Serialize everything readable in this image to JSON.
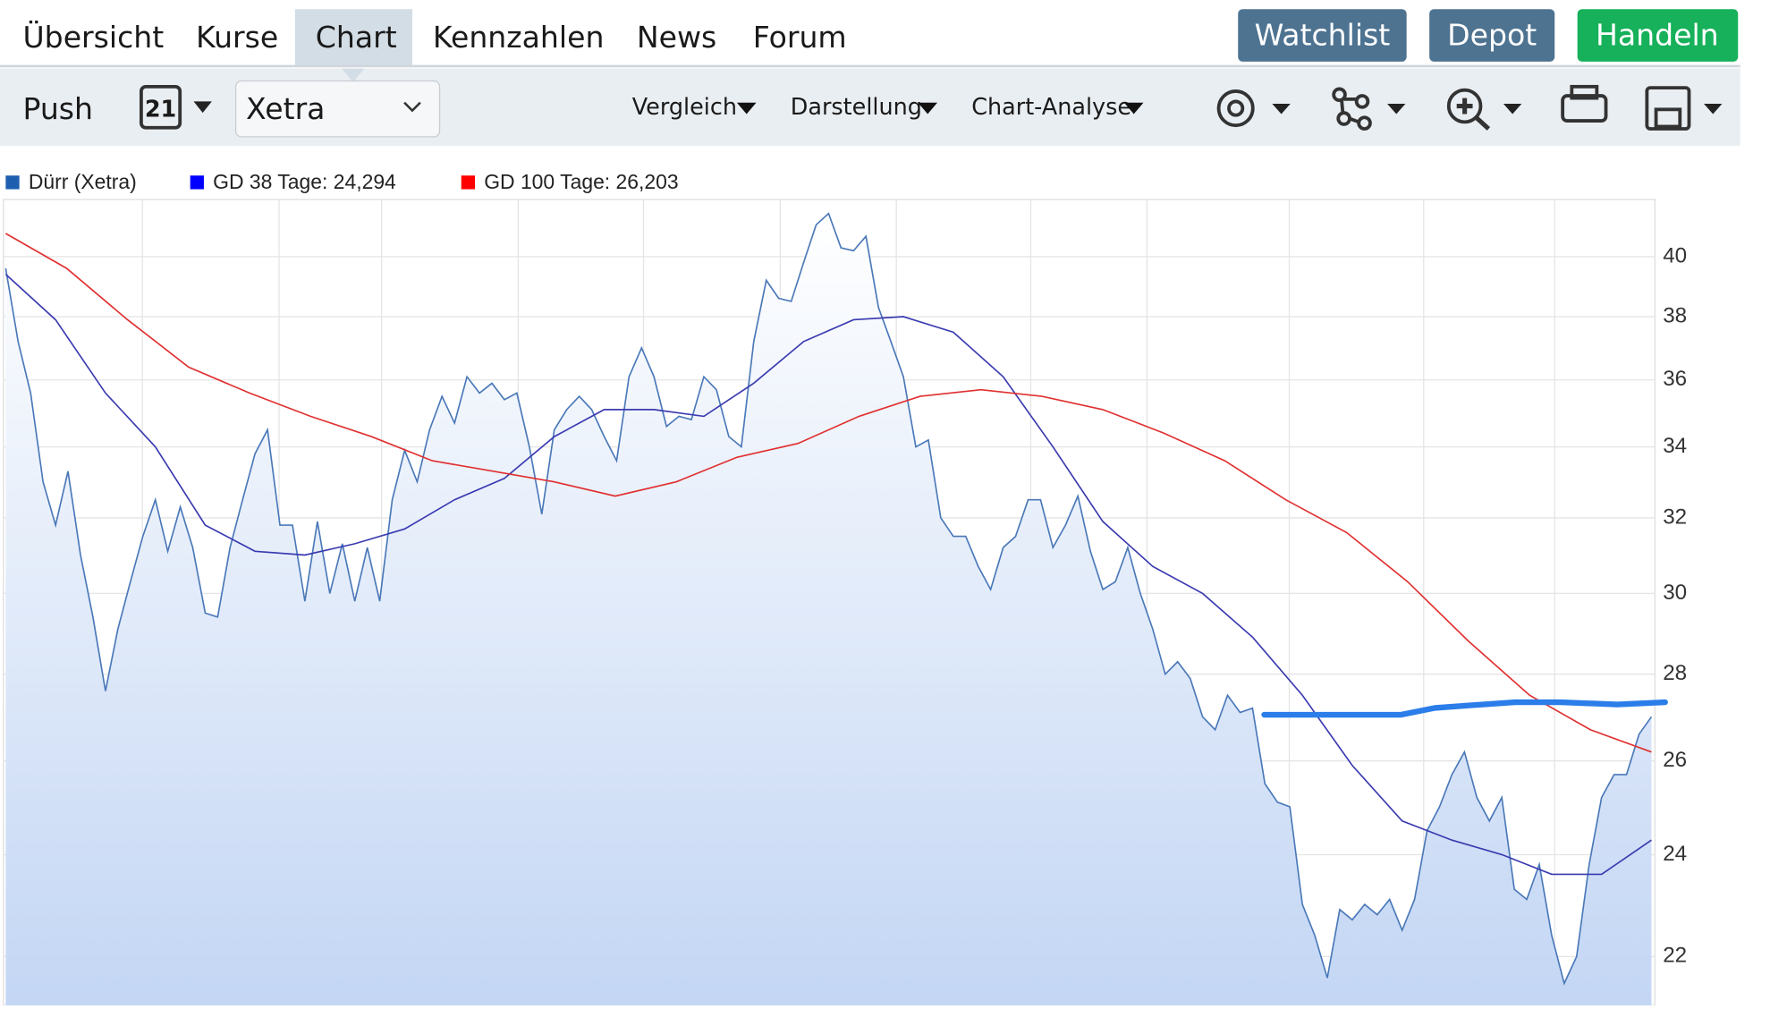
{
  "nav": {
    "tabs": [
      "Übersicht",
      "Kurse",
      "Chart",
      "Kennzahlen",
      "News",
      "Forum"
    ],
    "buttons": [
      "Watchlist",
      "Depot",
      "Handeln"
    ]
  },
  "toolbar": {
    "push": "Push",
    "calendar": "21",
    "exchange": "Xetra",
    "menus": [
      "Vergleich",
      "Darstellung",
      "Chart-Analyse"
    ]
  },
  "chart_data": {
    "type": "line",
    "log_scale": true,
    "grid": true,
    "ylim": [
      21.1,
      42
    ],
    "yticks": [
      22,
      24,
      26,
      28,
      30,
      32,
      34,
      36,
      38,
      40
    ],
    "series": [
      {
        "name": "Dürr (Xetra)",
        "color": "#4a78b8",
        "legend_color": "#1f5fb0",
        "area": true,
        "values": [
          39.6,
          37.2,
          35.6,
          33.0,
          31.8,
          33.3,
          31.0,
          29.4,
          27.6,
          29.1,
          30.3,
          31.5,
          32.5,
          31.1,
          32.3,
          31.2,
          29.5,
          29.4,
          31.2,
          32.5,
          33.8,
          34.5,
          31.8,
          31.8,
          29.8,
          31.9,
          30.0,
          31.3,
          29.8,
          31.2,
          29.8,
          32.5,
          33.9,
          33.0,
          34.5,
          35.5,
          34.7,
          36.1,
          35.6,
          35.9,
          35.4,
          35.6,
          34.0,
          32.1,
          34.5,
          35.1,
          35.5,
          35.1,
          34.3,
          33.6,
          36.1,
          37.0,
          36.1,
          34.6,
          34.9,
          34.8,
          36.1,
          35.7,
          34.3,
          34.0,
          37.2,
          39.2,
          38.6,
          38.5,
          39.8,
          41.1,
          41.5,
          40.3,
          40.2,
          40.7,
          38.3,
          37.2,
          36.1,
          34.0,
          34.2,
          32.0,
          31.5,
          31.5,
          30.7,
          30.1,
          31.2,
          31.5,
          32.5,
          32.5,
          31.2,
          31.8,
          32.6,
          31.1,
          30.1,
          30.3,
          31.2,
          30.0,
          29.1,
          28.0,
          28.3,
          27.9,
          27.0,
          26.7,
          27.5,
          27.1,
          27.2,
          25.5,
          25.1,
          25.0,
          23.0,
          22.4,
          21.6,
          22.9,
          22.7,
          23.0,
          22.8,
          23.1,
          22.5,
          23.1,
          24.5,
          25.0,
          25.7,
          26.2,
          25.2,
          24.7,
          25.2,
          23.3,
          23.1,
          23.8,
          22.4,
          21.5,
          22.0,
          23.8,
          25.2,
          25.7,
          25.7,
          26.6,
          27.0
        ]
      },
      {
        "name": "GD 38 Tage: 24,294",
        "color": "#3a3ab0",
        "legend_color": "#0000ff",
        "values": [
          39.4,
          37.9,
          35.6,
          34.0,
          31.8,
          31.1,
          31.0,
          31.3,
          31.7,
          32.5,
          33.1,
          34.3,
          35.1,
          35.1,
          34.9,
          35.9,
          37.2,
          37.9,
          38.0,
          37.5,
          36.1,
          34.0,
          31.9,
          30.7,
          30.0,
          28.9,
          27.5,
          25.9,
          24.7,
          24.3,
          24.0,
          23.6,
          23.6,
          24.3
        ]
      },
      {
        "name": "GD 100 Tage: 26,203",
        "color": "#e03030",
        "legend_color": "#ff0000",
        "values": [
          40.8,
          39.6,
          37.9,
          36.4,
          35.6,
          34.9,
          34.3,
          33.6,
          33.3,
          33.0,
          32.6,
          33.0,
          33.7,
          34.1,
          34.9,
          35.5,
          35.7,
          35.5,
          35.1,
          34.4,
          33.6,
          32.5,
          31.6,
          30.3,
          28.8,
          27.5,
          26.7,
          26.2
        ]
      }
    ]
  }
}
